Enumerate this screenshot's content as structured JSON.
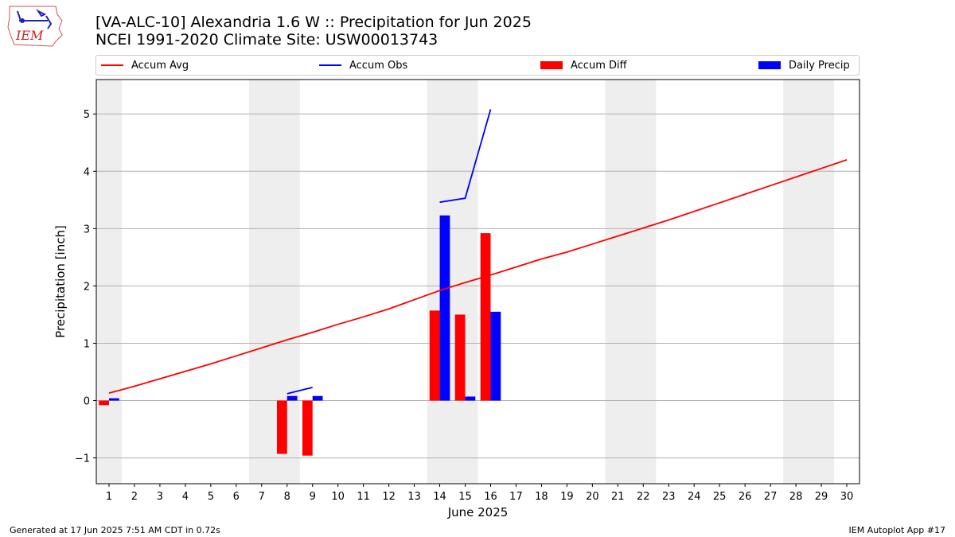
{
  "header": {
    "title_line1": "[VA-ALC-10] Alexandria 1.6 W :: Precipitation for Jun 2025",
    "title_line2": "NCEI 1991-2020 Climate Site: USW00013743",
    "logo_text": "IEM"
  },
  "footer": {
    "left": "Generated at 17 Jun 2025 7:51 AM CDT in 0.72s",
    "right": "IEM Autoplot App #17"
  },
  "colors": {
    "avg": "#ff0000",
    "obs": "#0000ff",
    "diff": "#ff0000",
    "daily": "#0000ff",
    "weekend": "#eeeeee",
    "grid": "#b0b0b0"
  },
  "chart_data": {
    "type": "bar",
    "xlabel": "June 2025",
    "ylabel": "Precipitation [inch]",
    "xlim": [
      0.5,
      30.5
    ],
    "ylim": [
      -1.45,
      5.6
    ],
    "x_ticks": [
      1,
      2,
      3,
      4,
      5,
      6,
      7,
      8,
      9,
      10,
      11,
      12,
      13,
      14,
      15,
      16,
      17,
      18,
      19,
      20,
      21,
      22,
      23,
      24,
      25,
      26,
      27,
      28,
      29,
      30
    ],
    "y_ticks": [
      -1,
      0,
      1,
      2,
      3,
      4,
      5
    ],
    "y_tick_labels": [
      "−1",
      "0",
      "1",
      "2",
      "3",
      "4",
      "5"
    ],
    "grid": true,
    "legend_position": "top",
    "shaded_weekend_ranges": [
      [
        0.5,
        1.5
      ],
      [
        6.5,
        8.5
      ],
      [
        13.5,
        15.5
      ],
      [
        20.5,
        22.5
      ],
      [
        27.5,
        29.5
      ]
    ],
    "series": [
      {
        "name": "Accum Avg",
        "kind": "line",
        "x": [
          1,
          2,
          3,
          4,
          5,
          6,
          7,
          8,
          9,
          10,
          11,
          12,
          13,
          14,
          15,
          16,
          17,
          18,
          19,
          20,
          21,
          22,
          23,
          24,
          25,
          26,
          27,
          28,
          29,
          30
        ],
        "values": [
          0.13,
          0.25,
          0.38,
          0.51,
          0.64,
          0.78,
          0.92,
          1.06,
          1.19,
          1.33,
          1.46,
          1.6,
          1.76,
          1.92,
          2.06,
          2.19,
          2.33,
          2.47,
          2.59,
          2.73,
          2.87,
          3.01,
          3.15,
          3.3,
          3.45,
          3.6,
          3.75,
          3.9,
          4.05,
          4.2
        ]
      },
      {
        "name": "Accum Obs",
        "kind": "line",
        "segments": [
          {
            "x": [
              8,
              9
            ],
            "values": [
              0.12,
              0.23
            ]
          },
          {
            "x": [
              14,
              15,
              16
            ],
            "values": [
              3.46,
              3.53,
              5.08
            ]
          }
        ]
      },
      {
        "name": "Accum Diff",
        "kind": "bar",
        "x": [
          1,
          8,
          9,
          14,
          15,
          16
        ],
        "values": [
          -0.08,
          -0.93,
          -0.96,
          1.57,
          1.5,
          2.92
        ]
      },
      {
        "name": "Daily Precip",
        "kind": "bar",
        "x": [
          1,
          8,
          9,
          14,
          15,
          16
        ],
        "values": [
          0.04,
          0.08,
          0.08,
          3.23,
          0.07,
          1.55
        ]
      }
    ]
  }
}
